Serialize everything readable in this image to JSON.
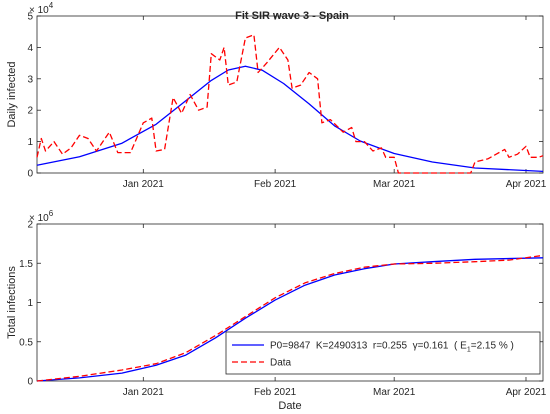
{
  "chart_data": [
    {
      "type": "line",
      "title": "Fit SIR wave 3 - Spain",
      "xlabel": "",
      "ylabel": "Daily infected",
      "exponent_label": "× 10",
      "exponent_power": "4",
      "x_start": "2020-12-07",
      "x_end": "2021-04-05",
      "xticks": [
        {
          "date": "2021-01-01",
          "label": "Jan 2021"
        },
        {
          "date": "2021-02-01",
          "label": "Feb 2021"
        },
        {
          "date": "2021-03-01",
          "label": "Mar 2021"
        },
        {
          "date": "2021-04-01",
          "label": "Apr 2021"
        }
      ],
      "yticks": [
        0,
        1,
        2,
        3,
        4,
        5
      ],
      "ylim": [
        0,
        5
      ],
      "grid": false,
      "series": [
        {
          "name": "",
          "style": "solid",
          "color": "#0000ff",
          "points": [
            [
              "2020-12-07",
              0.25
            ],
            [
              "2020-12-17",
              0.52
            ],
            [
              "2020-12-27",
              0.95
            ],
            [
              "2021-01-04",
              1.55
            ],
            [
              "2021-01-11",
              2.3
            ],
            [
              "2021-01-17",
              2.95
            ],
            [
              "2021-01-21",
              3.28
            ],
            [
              "2021-01-25",
              3.4
            ],
            [
              "2021-01-29",
              3.27
            ],
            [
              "2021-02-03",
              2.85
            ],
            [
              "2021-02-09",
              2.2
            ],
            [
              "2021-02-15",
              1.5
            ],
            [
              "2021-02-21",
              1.02
            ],
            [
              "2021-03-01",
              0.62
            ],
            [
              "2021-03-10",
              0.35
            ],
            [
              "2021-03-20",
              0.16
            ],
            [
              "2021-04-05",
              0.05
            ]
          ]
        },
        {
          "name": "",
          "style": "dashed",
          "color": "#ff0000",
          "points": [
            [
              "2020-12-07",
              0.5
            ],
            [
              "2020-12-08",
              1.1
            ],
            [
              "2020-12-09",
              0.7
            ],
            [
              "2020-12-11",
              1.0
            ],
            [
              "2020-12-13",
              0.6
            ],
            [
              "2020-12-15",
              0.8
            ],
            [
              "2020-12-17",
              1.2
            ],
            [
              "2020-12-19",
              1.1
            ],
            [
              "2020-12-21",
              0.7
            ],
            [
              "2020-12-24",
              1.3
            ],
            [
              "2020-12-26",
              0.65
            ],
            [
              "2020-12-29",
              0.65
            ],
            [
              "2021-01-01",
              1.6
            ],
            [
              "2021-01-03",
              1.75
            ],
            [
              "2021-01-04",
              0.7
            ],
            [
              "2021-01-06",
              0.75
            ],
            [
              "2021-01-08",
              2.4
            ],
            [
              "2021-01-10",
              1.9
            ],
            [
              "2021-01-12",
              2.5
            ],
            [
              "2021-01-14",
              2.0
            ],
            [
              "2021-01-16",
              2.1
            ],
            [
              "2021-01-17",
              3.8
            ],
            [
              "2021-01-19",
              3.6
            ],
            [
              "2021-01-20",
              4.0
            ],
            [
              "2021-01-21",
              2.8
            ],
            [
              "2021-01-23",
              2.9
            ],
            [
              "2021-01-25",
              4.3
            ],
            [
              "2021-01-27",
              4.4
            ],
            [
              "2021-01-28",
              3.2
            ],
            [
              "2021-01-30",
              3.5
            ],
            [
              "2021-02-02",
              4.0
            ],
            [
              "2021-02-04",
              3.6
            ],
            [
              "2021-02-05",
              2.7
            ],
            [
              "2021-02-07",
              2.8
            ],
            [
              "2021-02-09",
              3.2
            ],
            [
              "2021-02-11",
              3.0
            ],
            [
              "2021-02-12",
              1.6
            ],
            [
              "2021-02-14",
              1.7
            ],
            [
              "2021-02-17",
              1.3
            ],
            [
              "2021-02-19",
              1.45
            ],
            [
              "2021-02-20",
              1.0
            ],
            [
              "2021-02-22",
              1.0
            ],
            [
              "2021-02-24",
              0.7
            ],
            [
              "2021-02-26",
              0.8
            ],
            [
              "2021-02-27",
              0.5
            ],
            [
              "2021-03-01",
              0.5
            ],
            [
              "2021-03-02",
              0.0
            ],
            [
              "2021-03-19",
              0.0
            ],
            [
              "2021-03-20",
              0.35
            ],
            [
              "2021-03-23",
              0.45
            ],
            [
              "2021-03-25",
              0.6
            ],
            [
              "2021-03-27",
              0.75
            ],
            [
              "2021-03-28",
              0.5
            ],
            [
              "2021-03-30",
              0.6
            ],
            [
              "2021-04-01",
              0.85
            ],
            [
              "2021-04-02",
              0.5
            ],
            [
              "2021-04-04",
              0.5
            ],
            [
              "2021-04-05",
              0.55
            ]
          ]
        }
      ]
    },
    {
      "type": "line",
      "title": "",
      "xlabel": "Date",
      "ylabel": "Total infections",
      "exponent_label": "× 10",
      "exponent_power": "6",
      "x_start": "2020-12-07",
      "x_end": "2021-04-05",
      "xticks": [
        {
          "date": "2021-01-01",
          "label": "Jan 2021"
        },
        {
          "date": "2021-02-01",
          "label": "Feb 2021"
        },
        {
          "date": "2021-03-01",
          "label": "Mar 2021"
        },
        {
          "date": "2021-04-01",
          "label": "Apr 2021"
        }
      ],
      "yticks": [
        0,
        0.5,
        1,
        1.5,
        2
      ],
      "ylim": [
        0,
        2
      ],
      "grid": false,
      "legend_location": "bottom-right",
      "legend": [
        {
          "label": "P0=9847  K=2490313  r=0.255  γ=0.161  ( E",
          "sub": "1",
          "tail": "=2.15 % )",
          "style": "solid",
          "color": "#0000ff"
        },
        {
          "label": "Data",
          "sub": "",
          "tail": "",
          "style": "dashed",
          "color": "#ff0000"
        }
      ],
      "series": [
        {
          "name": "P0=9847  K=2490313  r=0.255  γ=0.161  ( E1=2.15 % )",
          "style": "solid",
          "color": "#0000ff",
          "points": [
            [
              "2020-12-07",
              0.0
            ],
            [
              "2020-12-17",
              0.04
            ],
            [
              "2020-12-27",
              0.1
            ],
            [
              "2021-01-04",
              0.2
            ],
            [
              "2021-01-11",
              0.33
            ],
            [
              "2021-01-18",
              0.55
            ],
            [
              "2021-01-25",
              0.8
            ],
            [
              "2021-02-01",
              1.03
            ],
            [
              "2021-02-08",
              1.22
            ],
            [
              "2021-02-15",
              1.35
            ],
            [
              "2021-02-22",
              1.43
            ],
            [
              "2021-03-01",
              1.49
            ],
            [
              "2021-03-10",
              1.52
            ],
            [
              "2021-03-20",
              1.55
            ],
            [
              "2021-04-05",
              1.57
            ]
          ]
        },
        {
          "name": "Data",
          "style": "dashed",
          "color": "#ff0000",
          "points": [
            [
              "2020-12-07",
              0.0
            ],
            [
              "2020-12-17",
              0.06
            ],
            [
              "2020-12-27",
              0.14
            ],
            [
              "2021-01-04",
              0.22
            ],
            [
              "2021-01-11",
              0.36
            ],
            [
              "2021-01-18",
              0.58
            ],
            [
              "2021-01-25",
              0.82
            ],
            [
              "2021-02-01",
              1.06
            ],
            [
              "2021-02-08",
              1.25
            ],
            [
              "2021-02-15",
              1.37
            ],
            [
              "2021-02-22",
              1.45
            ],
            [
              "2021-03-01",
              1.49
            ],
            [
              "2021-03-10",
              1.5
            ],
            [
              "2021-03-20",
              1.52
            ],
            [
              "2021-03-28",
              1.54
            ],
            [
              "2021-04-05",
              1.6
            ]
          ]
        }
      ]
    }
  ]
}
